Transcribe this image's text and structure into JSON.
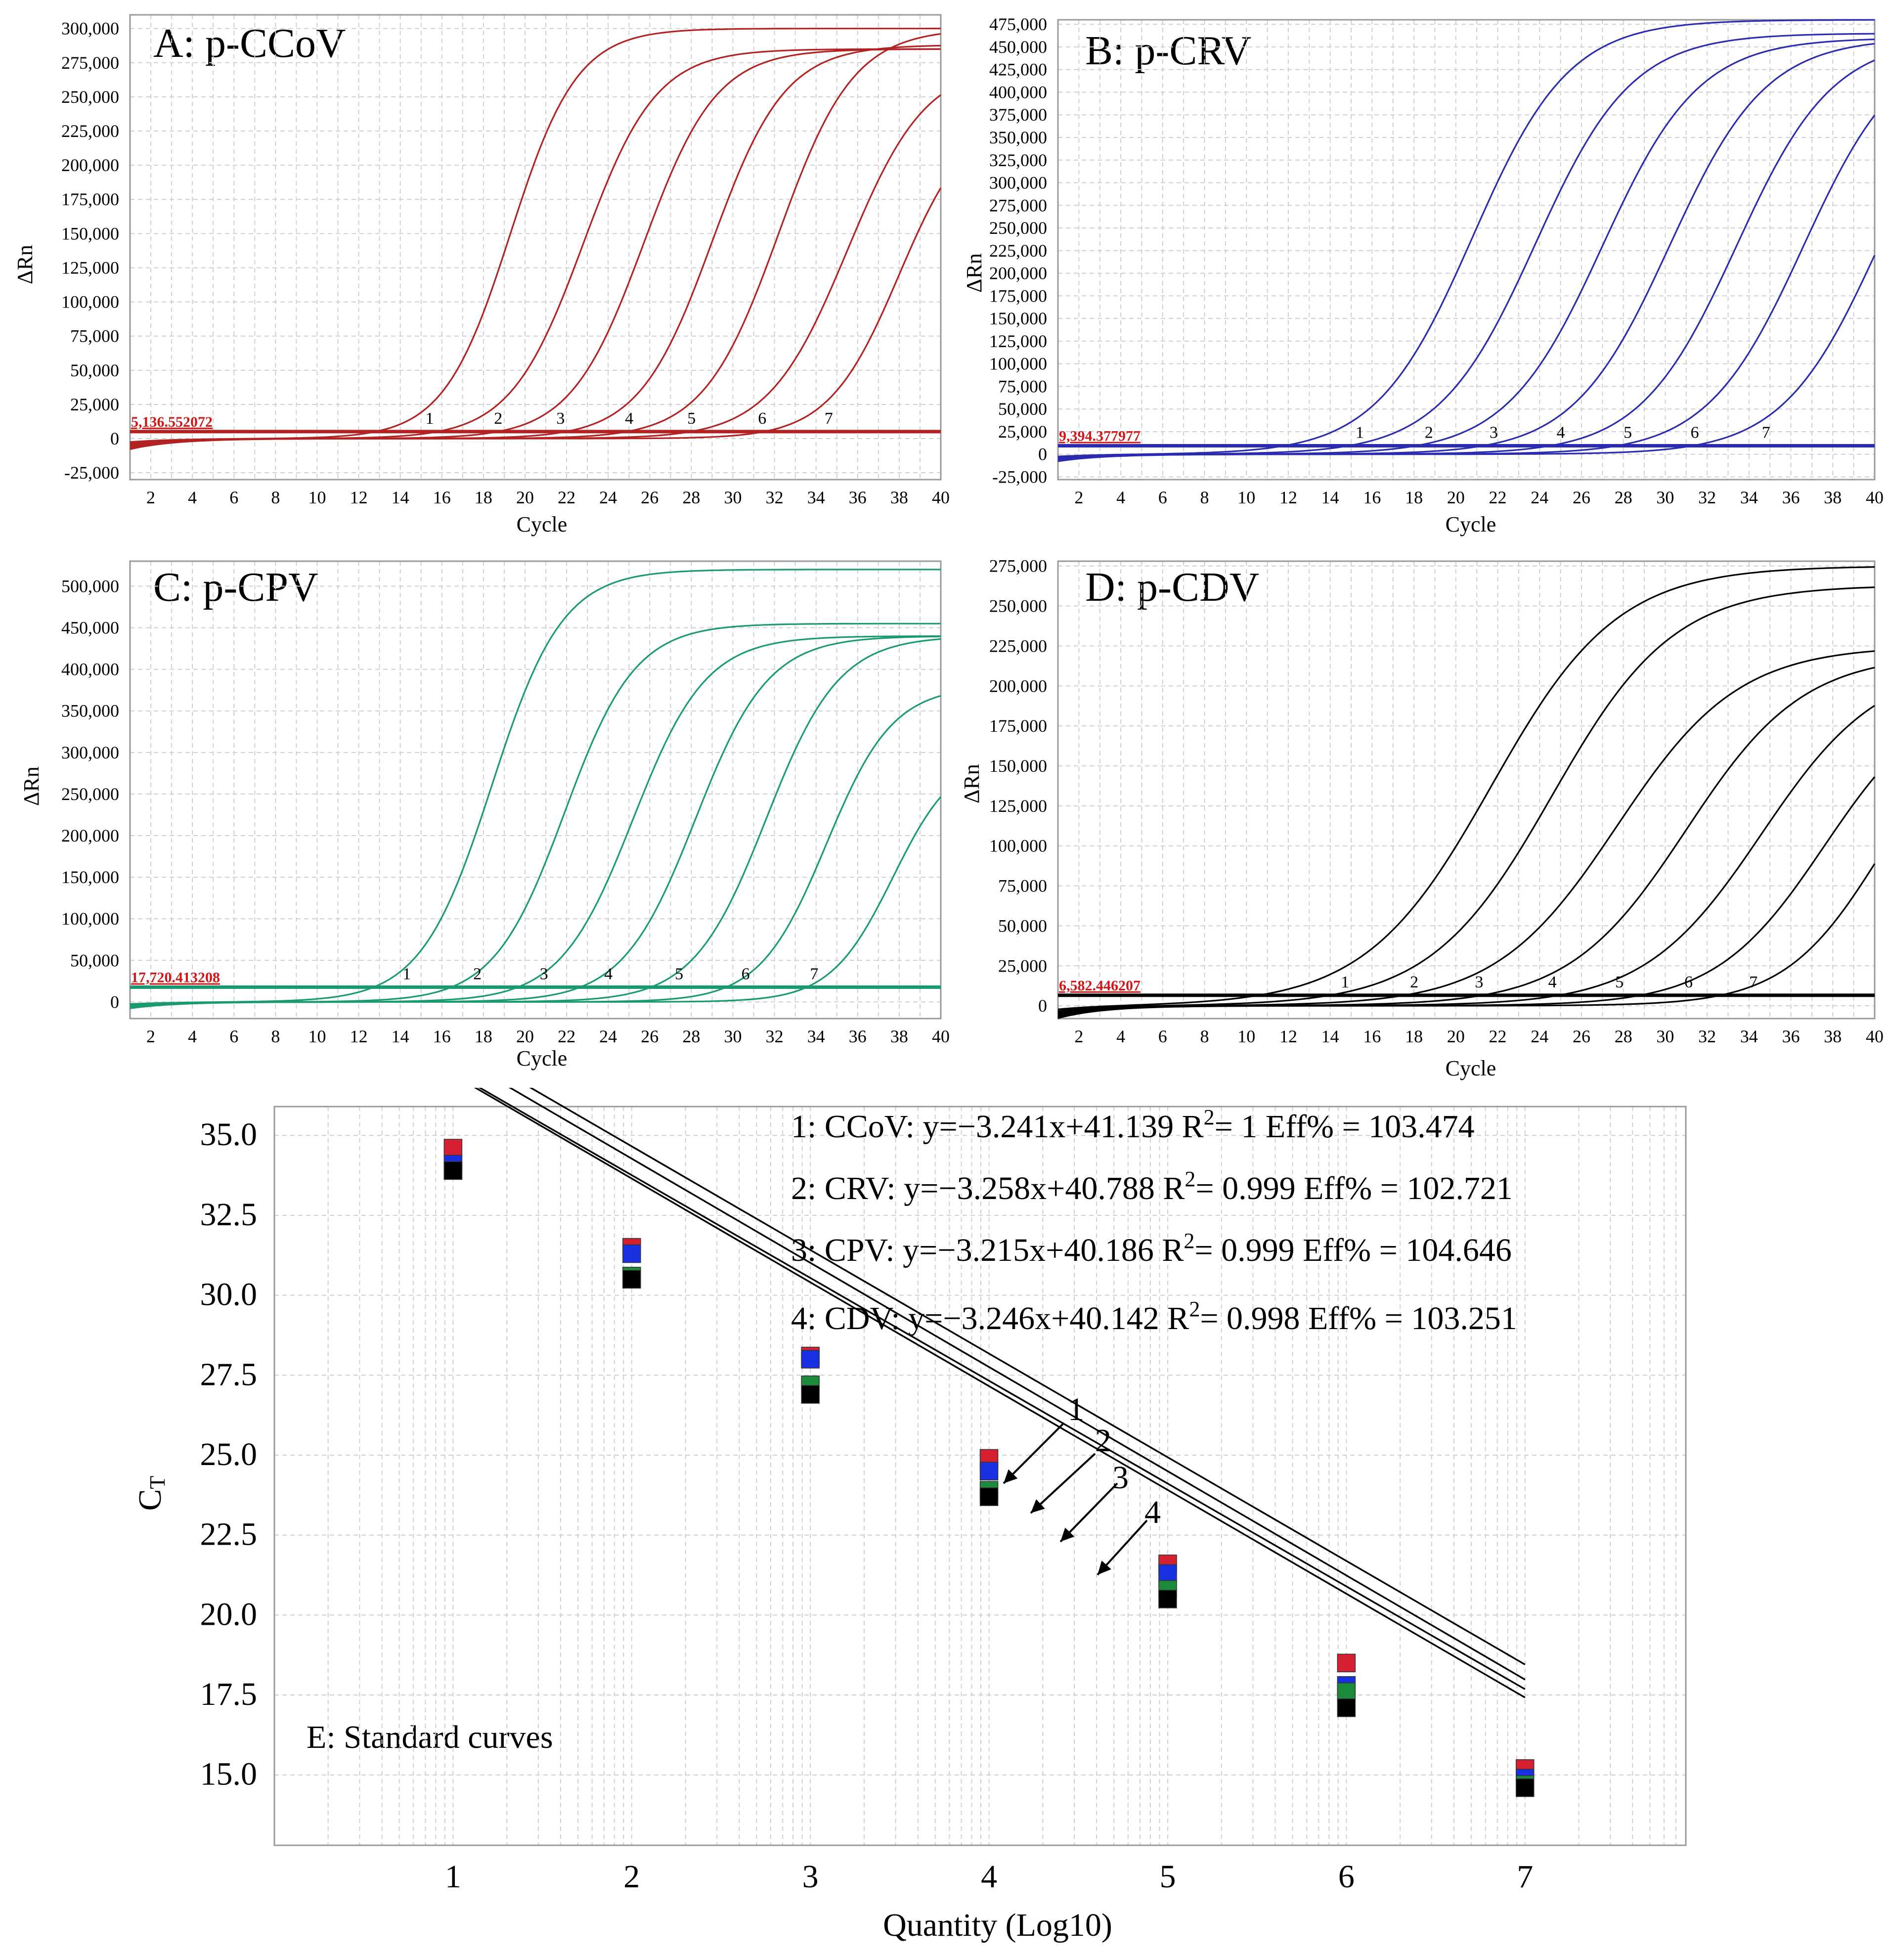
{
  "chart_data": [
    {
      "type": "line",
      "title": "A: p-CCoV",
      "xlabel": "Cycle",
      "ylabel": "ΔRn",
      "color": "#b22222",
      "xlim": [
        1,
        40
      ],
      "ylim": [
        -30000,
        310000
      ],
      "yticks": [
        -25000,
        0,
        25000,
        50000,
        75000,
        100000,
        125000,
        150000,
        175000,
        200000,
        225000,
        250000,
        275000,
        300000
      ],
      "ytick_labels": [
        "-25,000",
        "0",
        "25,000",
        "50,000",
        "75,000",
        "100,000",
        "125,000",
        "150,000",
        "175,000",
        "200,000",
        "225,000",
        "250,000",
        "275,000",
        "300,000"
      ],
      "xticks": [
        2,
        4,
        6,
        8,
        10,
        12,
        14,
        16,
        18,
        20,
        22,
        24,
        26,
        28,
        30,
        32,
        34,
        36,
        38,
        40
      ],
      "threshold": 5136.552072,
      "threshold_label": "5,136.552072",
      "curves": [
        {
          "label": "1",
          "ct": 15.6,
          "midpoint": 19.3,
          "plateau": 300000,
          "slope": 1.6
        },
        {
          "label": "2",
          "ct": 18.9,
          "midpoint": 22.8,
          "plateau": 285000,
          "slope": 1.75
        },
        {
          "label": "3",
          "ct": 21.9,
          "midpoint": 25.7,
          "plateau": 285000,
          "slope": 1.75
        },
        {
          "label": "4",
          "ct": 25.2,
          "midpoint": 29.0,
          "plateau": 288000,
          "slope": 1.75
        },
        {
          "label": "5",
          "ct": 28.2,
          "midpoint": 32.2,
          "plateau": 300000,
          "slope": 1.8
        },
        {
          "label": "6",
          "ct": 31.6,
          "midpoint": 35.5,
          "plateau": 275000,
          "slope": 1.9
        },
        {
          "label": "7",
          "ct": 34.8,
          "midpoint": 38.0,
          "plateau": 240000,
          "slope": 1.7
        }
      ]
    },
    {
      "type": "line",
      "title": "B: p-CRV",
      "xlabel": "Cycle",
      "ylabel": "ΔRn",
      "color": "#2b2bb0",
      "xlim": [
        1,
        40
      ],
      "ylim": [
        -28000,
        480000
      ],
      "yticks": [
        -25000,
        0,
        25000,
        50000,
        75000,
        100000,
        125000,
        150000,
        175000,
        200000,
        225000,
        250000,
        275000,
        300000,
        325000,
        350000,
        375000,
        400000,
        425000,
        450000,
        475000
      ],
      "ytick_labels": [
        "-25,000",
        "0",
        "25,000",
        "50,000",
        "75,000",
        "100,000",
        "125,000",
        "150,000",
        "175,000",
        "200,000",
        "225,000",
        "250,000",
        "275,000",
        "300,000",
        "325,000",
        "350,000",
        "375,000",
        "400,000",
        "425,000",
        "450,000",
        "475,000"
      ],
      "xticks": [
        2,
        4,
        6,
        8,
        10,
        12,
        14,
        16,
        18,
        20,
        22,
        24,
        26,
        28,
        30,
        32,
        34,
        36,
        38,
        40
      ],
      "threshold": 9394.377977,
      "threshold_label": "9,394.377977",
      "curves": [
        {
          "label": "1",
          "ct": 15.6,
          "midpoint": 20.8,
          "plateau": 480000,
          "slope": 2.3
        },
        {
          "label": "2",
          "ct": 18.9,
          "midpoint": 23.8,
          "plateau": 465000,
          "slope": 2.3
        },
        {
          "label": "3",
          "ct": 22.0,
          "midpoint": 27.0,
          "plateau": 460000,
          "slope": 2.3
        },
        {
          "label": "4",
          "ct": 25.2,
          "midpoint": 30.2,
          "plateau": 460000,
          "slope": 2.3
        },
        {
          "label": "5",
          "ct": 28.4,
          "midpoint": 33.4,
          "plateau": 460000,
          "slope": 2.3
        },
        {
          "label": "6",
          "ct": 31.6,
          "midpoint": 36.6,
          "plateau": 460000,
          "slope": 2.3
        },
        {
          "label": "7",
          "ct": 35.0,
          "midpoint": 40.2,
          "plateau": 460000,
          "slope": 2.3
        }
      ]
    },
    {
      "type": "line",
      "title": "C: p-CPV",
      "xlabel": "Cycle",
      "ylabel": "ΔRn",
      "color": "#1a9a70",
      "xlim": [
        1,
        40
      ],
      "ylim": [
        -20000,
        530000
      ],
      "yticks": [
        0,
        50000,
        100000,
        150000,
        200000,
        250000,
        300000,
        350000,
        400000,
        450000,
        500000
      ],
      "ytick_labels": [
        "0",
        "50,000",
        "100,000",
        "150,000",
        "200,000",
        "250,000",
        "300,000",
        "350,000",
        "400,000",
        "450,000",
        "500,000"
      ],
      "xticks": [
        2,
        4,
        6,
        8,
        10,
        12,
        14,
        16,
        18,
        20,
        22,
        24,
        26,
        28,
        30,
        32,
        34,
        36,
        38,
        40
      ],
      "threshold": 17720.413208,
      "threshold_label": "17,720.413208",
      "curves": [
        {
          "label": "1",
          "ct": 14.5,
          "midpoint": 18.4,
          "plateau": 520000,
          "slope": 1.7
        },
        {
          "label": "2",
          "ct": 17.9,
          "midpoint": 21.9,
          "plateau": 455000,
          "slope": 1.7
        },
        {
          "label": "3",
          "ct": 21.1,
          "midpoint": 25.2,
          "plateau": 440000,
          "slope": 1.75
        },
        {
          "label": "4",
          "ct": 24.2,
          "midpoint": 28.2,
          "plateau": 440000,
          "slope": 1.75
        },
        {
          "label": "5",
          "ct": 27.6,
          "midpoint": 31.6,
          "plateau": 440000,
          "slope": 1.75
        },
        {
          "label": "6",
          "ct": 30.8,
          "midpoint": 34.5,
          "plateau": 380000,
          "slope": 1.6
        },
        {
          "label": "7",
          "ct": 34.1,
          "midpoint": 37.7,
          "plateau": 300000,
          "slope": 1.5
        }
      ]
    },
    {
      "type": "line",
      "title": "D: p-CDV",
      "xlabel": "Cycle",
      "ylabel": "ΔRn",
      "color": "#000000",
      "xlim": [
        1,
        40
      ],
      "ylim": [
        -8000,
        278000
      ],
      "yticks": [
        0,
        25000,
        50000,
        75000,
        100000,
        125000,
        150000,
        175000,
        200000,
        225000,
        250000,
        275000
      ],
      "ytick_labels": [
        "0",
        "25,000",
        "50,000",
        "75,000",
        "100,000",
        "125,000",
        "150,000",
        "175,000",
        "200,000",
        "225,000",
        "250,000",
        "275,000"
      ],
      "xticks": [
        2,
        4,
        6,
        8,
        10,
        12,
        14,
        16,
        18,
        20,
        22,
        24,
        26,
        28,
        30,
        32,
        34,
        36,
        38,
        40
      ],
      "threshold": 6582.446207,
      "threshold_label": "6,582.446207",
      "curves": [
        {
          "label": "1",
          "ct": 14.9,
          "midpoint": 21.7,
          "plateau": 275000,
          "slope": 3.0
        },
        {
          "label": "2",
          "ct": 18.2,
          "midpoint": 24.6,
          "plateau": 263000,
          "slope": 2.9
        },
        {
          "label": "3",
          "ct": 21.3,
          "midpoint": 27.7,
          "plateau": 225000,
          "slope": 2.9
        },
        {
          "label": "4",
          "ct": 24.8,
          "midpoint": 31.0,
          "plateau": 220000,
          "slope": 2.8
        },
        {
          "label": "5",
          "ct": 28.0,
          "midpoint": 34.6,
          "plateau": 215000,
          "slope": 2.8
        },
        {
          "label": "6",
          "ct": 31.3,
          "midpoint": 37.6,
          "plateau": 200000,
          "slope": 2.6
        },
        {
          "label": "7",
          "ct": 34.4,
          "midpoint": 40.3,
          "plateau": 190000,
          "slope": 2.3
        }
      ]
    },
    {
      "type": "scatter",
      "title": "E: Standard curves",
      "xlabel": "Quantity (Log10)",
      "ylabel": "CT",
      "xlim": [
        0,
        7.9
      ],
      "ylim": [
        12.8,
        35.9
      ],
      "xticks": [
        1,
        2,
        3,
        4,
        5,
        6,
        7
      ],
      "yticks": [
        15.0,
        17.5,
        20.0,
        22.5,
        25.0,
        27.5,
        30.0,
        32.5,
        35.0
      ],
      "ytick_labels": [
        "15.0",
        "17.5",
        "20.0",
        "22.5",
        "25.0",
        "27.5",
        "30.0",
        "32.5",
        "35.0"
      ],
      "x": [
        1,
        2,
        3,
        4,
        5,
        6,
        7
      ],
      "series": [
        {
          "name": "CCoV",
          "line_label": "1",
          "color": "#d42030",
          "slope": -3.241,
          "intercept": 41.139,
          "equation": "1: CCoV: y=−3.241x+41.139",
          "r2_value": "= 1",
          "eff": "Eff% = 103.474",
          "values": [
            34.6,
            31.5,
            28.1,
            24.9,
            21.6,
            18.5,
            15.2
          ]
        },
        {
          "name": "CRV",
          "line_label": "2",
          "color": "#1830e0",
          "slope": -3.258,
          "intercept": 40.788,
          "equation": "2: CRV: y=−3.258x+40.788",
          "r2_value": "= 0.999",
          "eff": "Eff% = 102.721",
          "values": [
            34.1,
            31.3,
            28.0,
            24.5,
            21.3,
            17.8,
            14.9
          ]
        },
        {
          "name": "CPV",
          "line_label": "3",
          "color": "#1b8a3a",
          "slope": -3.215,
          "intercept": 40.186,
          "equation": "3: CPV: y=−3.215x+40.186",
          "r2_value": "= 0.999",
          "eff": "Eff% = 104.646",
          "values": [
            33.9,
            30.6,
            27.2,
            23.9,
            20.8,
            17.6,
            14.7
          ]
        },
        {
          "name": "CDV",
          "line_label": "4",
          "color": "#000000",
          "slope": -3.246,
          "intercept": 40.142,
          "equation": "4: CDV: y=−3.246x+40.142",
          "r2_value": "= 0.998",
          "eff": "Eff% = 103.251",
          "values": [
            33.9,
            30.5,
            26.9,
            23.7,
            20.5,
            17.1,
            14.6
          ]
        }
      ]
    }
  ]
}
